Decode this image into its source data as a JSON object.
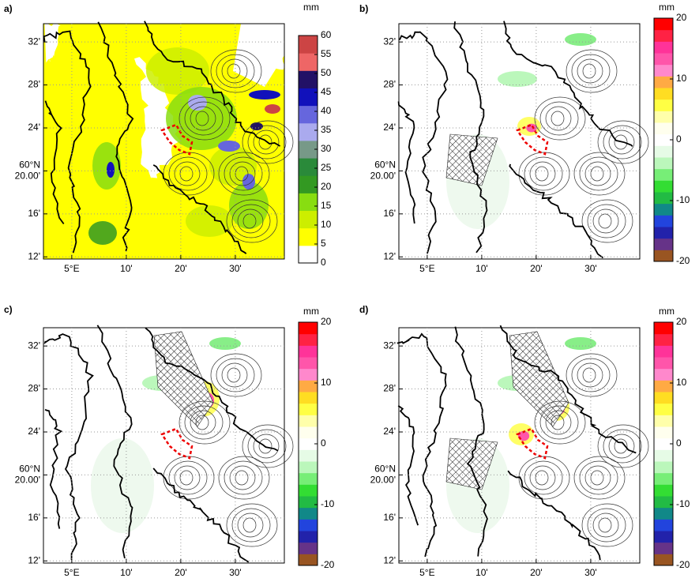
{
  "panels": [
    {
      "label": "a)",
      "unit": "mm",
      "xticks": [
        {
          "value": 0,
          "label": "5°E"
        },
        {
          "value": 10,
          "label": "10'"
        },
        {
          "value": 20,
          "label": "20'"
        },
        {
          "value": 30,
          "label": "30'"
        }
      ],
      "yticks": [
        {
          "value": 32,
          "label": "32'"
        },
        {
          "value": 28,
          "label": "28'"
        },
        {
          "value": 24,
          "label": "24'"
        },
        {
          "value": 20,
          "label": "60°N 20.00'"
        },
        {
          "value": 16,
          "label": "16'"
        },
        {
          "value": 12,
          "label": "12'"
        }
      ],
      "xlim": [
        -5.2,
        39
      ],
      "ylim": [
        11.8,
        33.7
      ],
      "colorbar": {
        "lim": [
          0,
          60
        ],
        "ticks": [
          0,
          5,
          10,
          15,
          20,
          25,
          30,
          35,
          40,
          45,
          50,
          55,
          60
        ],
        "colors": [
          "#ffffff",
          "#ffff00",
          "#ccee00",
          "#88dd11",
          "#339922",
          "#2a8a3a",
          "#779988",
          "#aaaaee",
          "#6666dd",
          "#1111bb",
          "#221166",
          "#ee6666",
          "#cc4444"
        ]
      }
    },
    {
      "label": "b)",
      "unit": "mm",
      "xticks": [
        {
          "value": 0,
          "label": "5°E"
        },
        {
          "value": 10,
          "label": "10'"
        },
        {
          "value": 20,
          "label": "20'"
        },
        {
          "value": 30,
          "label": "30'"
        }
      ],
      "yticks": [
        {
          "value": 32,
          "label": "32'"
        },
        {
          "value": 28,
          "label": "28'"
        },
        {
          "value": 24,
          "label": "24'"
        },
        {
          "value": 20,
          "label": "60°N 20.00'"
        },
        {
          "value": 16,
          "label": "16'"
        },
        {
          "value": 12,
          "label": "12'"
        }
      ],
      "xlim": [
        -5.2,
        39
      ],
      "ylim": [
        11.8,
        33.7
      ],
      "colorbar": {
        "lim": [
          -20,
          20
        ],
        "ticks": [
          20,
          10,
          0,
          -10,
          -20
        ],
        "colors": [
          "#995522",
          "#663388",
          "#2222aa",
          "#2244dd",
          "#118888",
          "#22bb44",
          "#33dd33",
          "#77ee77",
          "#bbf7bb",
          "#e6fbe6",
          "#ffffff",
          "#ffffee",
          "#ffffaa",
          "#ffff44",
          "#ffdd22",
          "#ffaa44",
          "#ff88cc",
          "#ff55aa",
          "#ff3399",
          "#ff2244",
          "#ff0000"
        ]
      }
    },
    {
      "label": "c)",
      "unit": "mm",
      "xticks": [
        {
          "value": 0,
          "label": "5°E"
        },
        {
          "value": 10,
          "label": "10'"
        },
        {
          "value": 20,
          "label": "20'"
        },
        {
          "value": 30,
          "label": "30'"
        }
      ],
      "yticks": [
        {
          "value": 32,
          "label": "32'"
        },
        {
          "value": 28,
          "label": "28'"
        },
        {
          "value": 24,
          "label": "24'"
        },
        {
          "value": 20,
          "label": "60°N 20.00'"
        },
        {
          "value": 16,
          "label": "16'"
        },
        {
          "value": 12,
          "label": "12'"
        }
      ],
      "xlim": [
        -5.2,
        39
      ],
      "ylim": [
        11.8,
        33.7
      ],
      "colorbar": {
        "lim": [
          -20,
          20
        ],
        "ticks": [
          20,
          10,
          0,
          -10,
          -20
        ],
        "colors": [
          "#995522",
          "#663388",
          "#2222aa",
          "#2244dd",
          "#118888",
          "#22bb44",
          "#33dd33",
          "#77ee77",
          "#bbf7bb",
          "#e6fbe6",
          "#ffffff",
          "#ffffee",
          "#ffffaa",
          "#ffff44",
          "#ffdd22",
          "#ffaa44",
          "#ff88cc",
          "#ff55aa",
          "#ff3399",
          "#ff2244",
          "#ff0000"
        ]
      }
    },
    {
      "label": "d)",
      "unit": "mm",
      "xticks": [
        {
          "value": 0,
          "label": "5°E"
        },
        {
          "value": 10,
          "label": "10'"
        },
        {
          "value": 20,
          "label": "20'"
        },
        {
          "value": 30,
          "label": "30'"
        }
      ],
      "yticks": [
        {
          "value": 32,
          "label": "32'"
        },
        {
          "value": 28,
          "label": "28'"
        },
        {
          "value": 24,
          "label": "24'"
        },
        {
          "value": 20,
          "label": "60°N 20.00'"
        },
        {
          "value": 16,
          "label": "16'"
        },
        {
          "value": 12,
          "label": "12'"
        }
      ],
      "xlim": [
        -5.2,
        39
      ],
      "ylim": [
        11.8,
        33.7
      ],
      "colorbar": {
        "lim": [
          -20,
          20
        ],
        "ticks": [
          20,
          10,
          0,
          -10,
          -20
        ],
        "colors": [
          "#995522",
          "#663388",
          "#2222aa",
          "#2244dd",
          "#118888",
          "#22bb44",
          "#33dd33",
          "#77ee77",
          "#bbf7bb",
          "#e6fbe6",
          "#ffffff",
          "#ffffee",
          "#ffffaa",
          "#ffff44",
          "#ffdd22",
          "#ffaa44",
          "#ff88cc",
          "#ff55aa",
          "#ff3399",
          "#ff2244",
          "#ff0000"
        ]
      }
    }
  ]
}
